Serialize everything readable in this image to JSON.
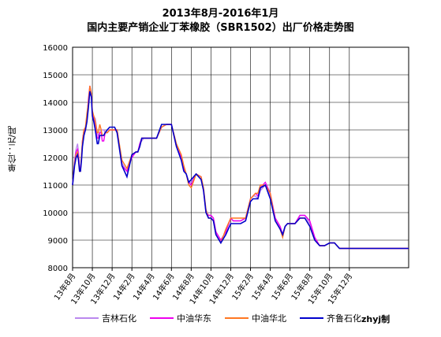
{
  "title_line1": "2013年8月-2016年1月",
  "title_line2": "国内主要产销企业丁苯橡胶（SBR1502）出厂价格走势图",
  "credit": "zhyj制",
  "chart_data": {
    "type": "line",
    "ylabel": "单位：元/吨",
    "ylim": [
      8000,
      16000
    ],
    "yticks": [
      8000,
      9000,
      10000,
      11000,
      12000,
      13000,
      14000,
      15000,
      16000
    ],
    "xticks": [
      "13年8月",
      "13年10月",
      "13年12月",
      "14年2月",
      "14年4月",
      "14年6月",
      "14年8月",
      "14年10月",
      "14年12月",
      "15年2月",
      "15年4月",
      "15年6月",
      "15年8月",
      "15年10月",
      "15年12月"
    ],
    "grid": true,
    "legend_position": "bottom",
    "x": [
      0,
      0.2,
      0.35,
      0.5,
      0.6,
      0.7,
      0.8,
      0.9,
      1.0,
      1.15,
      1.3,
      1.45,
      1.6,
      1.75,
      1.9,
      2.0,
      2.15,
      2.3,
      2.5,
      2.6,
      2.75,
      2.9,
      3.0,
      3.15,
      3.3,
      3.5,
      3.75,
      4.0,
      4.25,
      4.5,
      5.0,
      5.5,
      6.0,
      6.4,
      6.6,
      6.8,
      7.0,
      7.2,
      7.5,
      8.0,
      8.5,
      9.0,
      9.5,
      10.0,
      10.5,
      11.0,
      11.25,
      11.5,
      11.75,
      12.0,
      12.5,
      13.0,
      13.25,
      13.5,
      13.75,
      14.0,
      14.25,
      14.5,
      15.0,
      15.5,
      16.0,
      16.25,
      16.5,
      17.0,
      17.5,
      18.0,
      18.25,
      18.5,
      18.75,
      19.0,
      19.5,
      20.0,
      20.5,
      21.0,
      21.25,
      21.5,
      21.75,
      22.0,
      22.5,
      23.0,
      23.25,
      23.5,
      24.0,
      24.5,
      25.0,
      25.5,
      26.0,
      26.5,
      27.0,
      27.5,
      28.0,
      28.5,
      29.0,
      29.5,
      30.0,
      30.5,
      31.0,
      31.5,
      32.0,
      32.5,
      33.0,
      33.5,
      34.0
    ],
    "series": [
      {
        "name": "吉林石化",
        "color": "#bb88ee",
        "values": [
          11000,
          11900,
          12300,
          12500,
          12200,
          11600,
          11500,
          12000,
          12500,
          13000,
          13000,
          13500,
          14000,
          14500,
          14300,
          13600,
          13500,
          13400,
          12900,
          12800,
          12900,
          13000,
          13000,
          13000,
          12900,
          13000,
          13000,
          13000,
          13000,
          13000,
          11800,
          11500,
          12100,
          12200,
          12200,
          12500,
          12600,
          12700,
          12700,
          12700,
          12700,
          13100,
          13200,
          13200,
          12400,
          12000,
          11600,
          11400,
          11100,
          11100,
          11400,
          11300,
          10800,
          10100,
          9900,
          9900,
          9800,
          9300,
          9000,
          9300,
          9800,
          9700,
          9700,
          9700,
          9800,
          10500,
          10600,
          10600,
          10500,
          10800,
          11000,
          10600,
          9800,
          9500,
          9200,
          9500,
          9600,
          9600,
          9600,
          9900,
          9900,
          9900,
          9600,
          9000,
          8800,
          8800,
          8900,
          8900,
          8700,
          8700,
          8700,
          8700,
          8700,
          8700,
          8700,
          8700,
          8700,
          8700,
          8700,
          8700,
          8700,
          8700,
          8700
        ]
      },
      {
        "name": "中油华东",
        "color": "#ee00ee",
        "values": [
          11000,
          11800,
          12200,
          12300,
          12100,
          11600,
          11500,
          12000,
          12600,
          13000,
          13000,
          13400,
          14100,
          14600,
          14300,
          13600,
          13400,
          13100,
          12700,
          12700,
          12900,
          12900,
          12600,
          12600,
          12900,
          12900,
          13000,
          13000,
          13000,
          13000,
          11700,
          11500,
          12000,
          12200,
          12200,
          12500,
          12700,
          12700,
          12700,
          12700,
          12700,
          13100,
          13200,
          13200,
          12400,
          12000,
          11600,
          11400,
          11100,
          11000,
          11400,
          11300,
          10800,
          10000,
          9900,
          9900,
          9800,
          9300,
          9000,
          9300,
          9800,
          9700,
          9700,
          9700,
          9800,
          10500,
          10600,
          10700,
          10600,
          10900,
          11100,
          10700,
          9800,
          9500,
          9200,
          9500,
          9600,
          9600,
          9600,
          9900,
          9900,
          9900,
          9700,
          9100,
          8800,
          8800,
          8900,
          8900,
          8700,
          8700,
          8700,
          8700,
          8700,
          8700,
          8700,
          8700,
          8700,
          8700,
          8700,
          8700,
          8700,
          8700,
          8700
        ]
      },
      {
        "name": "中油华北",
        "color": "#ff7722",
        "values": [
          11000,
          11800,
          12100,
          12200,
          12000,
          11500,
          11500,
          12100,
          12600,
          13000,
          13100,
          13600,
          14000,
          14600,
          14300,
          13700,
          13500,
          13300,
          12900,
          12900,
          13200,
          13000,
          12800,
          12800,
          12900,
          12900,
          13000,
          13000,
          13000,
          13000,
          11900,
          11600,
          12100,
          12200,
          12200,
          12400,
          12700,
          12700,
          12700,
          12700,
          12700,
          13100,
          13200,
          13200,
          12500,
          12100,
          11700,
          11400,
          11000,
          10900,
          11400,
          11300,
          10900,
          10100,
          9800,
          9800,
          9700,
          9200,
          8900,
          9400,
          9800,
          9800,
          9800,
          9800,
          9800,
          10500,
          10600,
          10700,
          10700,
          11000,
          11000,
          10700,
          9700,
          9400,
          9100,
          9500,
          9600,
          9600,
          9600,
          9800,
          9800,
          9800,
          9500,
          9000,
          8800,
          8800,
          8900,
          8900,
          8700,
          8700,
          8700,
          8700,
          8700,
          8700,
          8700,
          8700,
          8700,
          8700,
          8700,
          8700,
          8700,
          8700,
          8700
        ]
      },
      {
        "name": "齐鲁石化",
        "color": "#0000cc",
        "values": [
          11000,
          11700,
          12000,
          12100,
          11900,
          11500,
          11500,
          11900,
          12400,
          12800,
          13000,
          13300,
          13800,
          14400,
          14200,
          13500,
          13300,
          13000,
          12500,
          12500,
          12800,
          12800,
          12800,
          12800,
          12900,
          13000,
          13100,
          13100,
          13100,
          12900,
          11700,
          11300,
          12100,
          12200,
          12200,
          12400,
          12700,
          12700,
          12700,
          12700,
          12700,
          13200,
          13200,
          13200,
          12400,
          11900,
          11500,
          11400,
          11100,
          11200,
          11400,
          11200,
          10800,
          10000,
          9800,
          9800,
          9700,
          9200,
          8900,
          9200,
          9600,
          9600,
          9600,
          9600,
          9700,
          10400,
          10500,
          10500,
          10500,
          10900,
          11000,
          10500,
          9700,
          9400,
          9200,
          9500,
          9600,
          9600,
          9600,
          9800,
          9800,
          9800,
          9500,
          9000,
          8800,
          8800,
          8900,
          8900,
          8700,
          8700,
          8700,
          8700,
          8700,
          8700,
          8700,
          8700,
          8700,
          8700,
          8700,
          8700,
          8700,
          8700,
          8700
        ]
      }
    ]
  }
}
